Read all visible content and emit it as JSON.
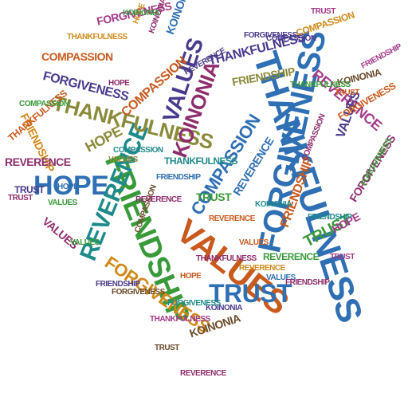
{
  "image": {
    "description_type": "word-cloud",
    "shape": "heart",
    "palette": [
      "#8e2d6c",
      "#c85a1e",
      "#2f6fb3",
      "#3a9a3a",
      "#7a7a2a",
      "#4a3a8c",
      "#d08a1a",
      "#1e8a8a",
      "#a33a8a",
      "#6a4a2a"
    ]
  },
  "words": [
    {
      "text": "THANKFULNESS",
      "color": "#2f6fb3"
    },
    {
      "text": "FORGIVENESS",
      "color": "#2f6fb3"
    },
    {
      "text": "FRIENDSHIP",
      "color": "#3a9a3a"
    },
    {
      "text": "VALUES",
      "color": "#c85a1e"
    },
    {
      "text": "TRUST",
      "color": "#2f6fb3"
    },
    {
      "text": "HOPE",
      "color": "#2f6fb3"
    },
    {
      "text": "REVERENCE",
      "color": "#1e8a8a"
    },
    {
      "text": "THANKFULNESS",
      "color": "#8a8a3a"
    },
    {
      "text": "VALUES",
      "color": "#4a3a8c"
    },
    {
      "text": "KOINONIA",
      "color": "#8e2d6c"
    },
    {
      "text": "COMPASSION",
      "color": "#2f6fb3"
    },
    {
      "text": "FORGIVENESS",
      "color": "#d08a1a"
    },
    {
      "text": "REVERENCE",
      "color": "#a33a8a"
    },
    {
      "text": "COMPASSION",
      "color": "#c85a1e"
    },
    {
      "text": "FORGIVENESS",
      "color": "#4a3a8c"
    },
    {
      "text": "THANKFULNESS",
      "color": "#4a3a8c"
    },
    {
      "text": "HOPE",
      "color": "#8a8a3a"
    },
    {
      "text": "TRUST",
      "color": "#3a9a3a"
    },
    {
      "text": "FRIENDSHIP",
      "color": "#c85a1e"
    },
    {
      "text": "REVERENCE",
      "color": "#2f6fb3"
    },
    {
      "text": "COMPASSION",
      "color": "#c85a1e"
    },
    {
      "text": "KOINONIA",
      "color": "#6a4a2a"
    },
    {
      "text": "FRIENDSHIP",
      "color": "#d08a1a"
    },
    {
      "text": "FORGIVENESS",
      "color": "#a33a8a"
    },
    {
      "text": "VALUES",
      "color": "#4a3a8c"
    },
    {
      "text": "REVERENCE",
      "color": "#8e2d6c"
    },
    {
      "text": "KOINONIA",
      "color": "#2f6fb3"
    },
    {
      "text": "THANKFULNESS",
      "color": "#c85a1e"
    },
    {
      "text": "FORGIVENESS",
      "color": "#8e2d6c"
    },
    {
      "text": "TRUST",
      "color": "#4a3a8c"
    },
    {
      "text": "HOPE",
      "color": "#a33a8a"
    },
    {
      "text": "VALUES",
      "color": "#8e2d6c"
    },
    {
      "text": "FRIENDSHIP",
      "color": "#8a8a3a"
    },
    {
      "text": "COMPASSION",
      "color": "#d08a1a"
    },
    {
      "text": "TRUST",
      "color": "#3a9a3a"
    },
    {
      "text": "KOINONIA",
      "color": "#6a4a2a"
    },
    {
      "text": "REVERENCE",
      "color": "#3a9a3a"
    },
    {
      "text": "FORGIVENESS",
      "color": "#c85a1e"
    },
    {
      "text": "THANKFULNESS",
      "color": "#1e8a8a"
    },
    {
      "text": "COMPASSION",
      "color": "#1e8a8a"
    },
    {
      "text": "FRIENDSHIP",
      "color": "#4a3a8c"
    },
    {
      "text": "HOPE",
      "color": "#d08a1a"
    },
    {
      "text": "REVERENCE",
      "color": "#c85a1e"
    },
    {
      "text": "VALUES",
      "color": "#2f6fb3"
    },
    {
      "text": "TRUST",
      "color": "#8e2d6c"
    },
    {
      "text": "KOINONIA",
      "color": "#8e2d6c"
    },
    {
      "text": "FORGIVENESS",
      "color": "#4a3a8c"
    },
    {
      "text": "COMPASSION",
      "color": "#3a9a3a"
    },
    {
      "text": "THANKFULNESS",
      "color": "#d08a1a"
    },
    {
      "text": "FRIENDSHIP",
      "color": "#a33a8a"
    },
    {
      "text": "VALUES",
      "color": "#c85a1e"
    },
    {
      "text": "REVERENCE",
      "color": "#4a3a8c"
    },
    {
      "text": "HOPE",
      "color": "#2f6fb3"
    },
    {
      "text": "TRUST",
      "color": "#6a4a2a"
    },
    {
      "text": "KOINONIA",
      "color": "#1e8a8a"
    },
    {
      "text": "COMPASSION",
      "color": "#8e2d6c"
    },
    {
      "text": "FORGIVENESS",
      "color": "#3a9a3a"
    },
    {
      "text": "THANKFULNESS",
      "color": "#a33a8a"
    },
    {
      "text": "FRIENDSHIP",
      "color": "#2f6fb3"
    },
    {
      "text": "VALUES",
      "color": "#8a8a3a"
    },
    {
      "text": "REVERENCE",
      "color": "#d08a1a"
    },
    {
      "text": "HOPE",
      "color": "#8e2d6c"
    },
    {
      "text": "TRUST",
      "color": "#c85a1e"
    },
    {
      "text": "KOINONIA",
      "color": "#4a3a8c"
    },
    {
      "text": "COMPASSION",
      "color": "#6a4a2a"
    },
    {
      "text": "FORGIVENESS",
      "color": "#1e8a8a"
    },
    {
      "text": "THANKFULNESS",
      "color": "#3a9a3a"
    },
    {
      "text": "FRIENDSHIP",
      "color": "#8e2d6c"
    },
    {
      "text": "VALUES",
      "color": "#a33a8a"
    },
    {
      "text": "REVERENCE",
      "color": "#2f6fb3"
    },
    {
      "text": "TRUST",
      "color": "#8a8a3a"
    },
    {
      "text": "HOPE",
      "color": "#c85a1e"
    },
    {
      "text": "KOINONIA",
      "color": "#3a9a3a"
    },
    {
      "text": "COMPASSION",
      "color": "#4a3a8c"
    },
    {
      "text": "FORGIVENESS",
      "color": "#6a4a2a"
    },
    {
      "text": "THANKFULNESS",
      "color": "#8e2d6c"
    },
    {
      "text": "FRIENDSHIP",
      "color": "#1e8a8a"
    },
    {
      "text": "VALUES",
      "color": "#3a9a3a"
    },
    {
      "text": "REVERENCE",
      "color": "#8e2d6c"
    },
    {
      "text": "TRUST",
      "color": "#a33a8a"
    }
  ]
}
